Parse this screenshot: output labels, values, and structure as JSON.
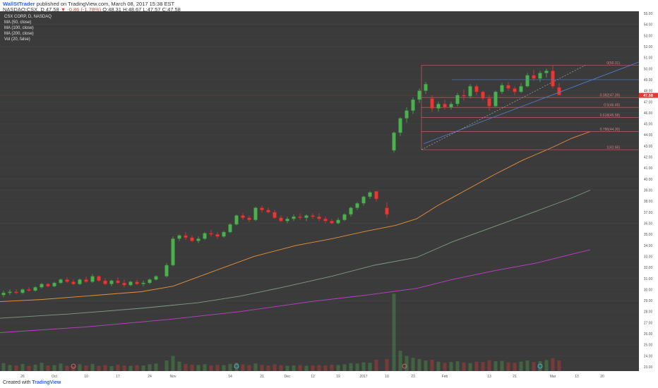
{
  "header": {
    "username": "WallStTrader",
    "published": "published on TradingView.com, March 08, 2017 15:38 EST",
    "ticker_line": "NASDAQ:CSX, D",
    "last": "47.58",
    "change": "▼ -0.86 (-1.78%)",
    "ohlc_o": "O:48.31",
    "ohlc_h": "H:48.67",
    "ohlc_l": "L:47.57",
    "ohlc_c": "C:47.58"
  },
  "legend": {
    "symbol": "CSX CORP, D, NASDAQ",
    "ma50": "MA (50, close)",
    "ma100": "MA (100, close)",
    "ma200": "MA (200, close)",
    "vol": "Vol (20, false)"
  },
  "footer": {
    "created_with": "Created with",
    "brand": "TradingView"
  },
  "colors": {
    "background": "#3b3b3b",
    "up": "#4caf50",
    "down": "#e53935",
    "ma50": "#e8923a",
    "ma100": "#7e9e80",
    "ma200": "#c040c8",
    "fib": "#c06060",
    "trendline": "#4f7fc8",
    "current_line": "#b03030"
  },
  "chart_data": {
    "type": "candlestick",
    "x_tick_labels": [
      "26",
      "Oct",
      "10",
      "17",
      "24",
      "Nov",
      "14",
      "21",
      "Dec",
      "12",
      "19",
      "2017",
      "10",
      "23",
      "Feb",
      "13",
      "21",
      "Mar",
      "13",
      "20"
    ],
    "y_axis": {
      "min": 23,
      "max": 55,
      "ticks": [
        23.0,
        24.0,
        25.0,
        26.0,
        27.0,
        28.0,
        29.0,
        30.0,
        31.0,
        32.0,
        33.0,
        34.0,
        35.0,
        36.0,
        37.0,
        38.0,
        39.0,
        40.0,
        41.0,
        42.0,
        43.0,
        44.0,
        45.0,
        46.0,
        47.0,
        48.0,
        49.0,
        50.0,
        51.0,
        52.0,
        53.0,
        54.0,
        55.0
      ],
      "tick_labels": [
        "23.00",
        "24.00",
        "25.00",
        "26.00",
        "27.00",
        "28.00",
        "29.00",
        "30.00",
        "31.00",
        "32.00",
        "33.00",
        "34.00",
        "35.00",
        "36.00",
        "37.00",
        "38.00",
        "39.00",
        "40.00",
        "41.00",
        "42.00",
        "43.00",
        "44.00",
        "45.00",
        "46.00",
        "47.00",
        "48.00",
        "49.00",
        "50.00",
        "51.00",
        "52.00",
        "53.00",
        "54.00",
        "55.00"
      ]
    },
    "current_price": 47.58,
    "current_price_label": "47.58",
    "fibonacci": [
      {
        "label": "0(50.31)",
        "value": 50.31
      },
      {
        "label": "0.382(47.39)",
        "value": 47.39
      },
      {
        "label": "0.5(46.49)",
        "value": 46.49
      },
      {
        "label": "0.618(45.58)",
        "value": 45.58
      },
      {
        "label": "0.786(44.30)",
        "value": 44.3
      },
      {
        "label": "1(42.66)",
        "value": 42.66
      }
    ],
    "candles": [
      [
        29.5,
        29.9,
        29.3,
        29.7
      ],
      [
        29.7,
        30.0,
        29.5,
        29.8
      ],
      [
        29.8,
        30.0,
        29.6,
        29.7
      ],
      [
        29.7,
        30.1,
        29.6,
        30.0
      ],
      [
        30.0,
        30.2,
        29.8,
        29.9
      ],
      [
        29.9,
        30.3,
        29.8,
        30.2
      ],
      [
        30.2,
        30.6,
        30.1,
        30.5
      ],
      [
        30.5,
        30.6,
        30.2,
        30.3
      ],
      [
        30.3,
        30.7,
        30.2,
        30.6
      ],
      [
        30.6,
        31.0,
        30.5,
        30.9
      ],
      [
        30.9,
        31.1,
        30.6,
        30.7
      ],
      [
        30.7,
        30.9,
        30.4,
        30.5
      ],
      [
        30.5,
        31.0,
        30.4,
        30.9
      ],
      [
        30.9,
        31.2,
        30.6,
        30.7
      ],
      [
        30.7,
        31.4,
        30.6,
        31.2
      ],
      [
        31.2,
        31.3,
        30.7,
        30.8
      ],
      [
        30.8,
        31.0,
        30.4,
        30.5
      ],
      [
        30.5,
        30.9,
        30.3,
        30.8
      ],
      [
        30.8,
        31.1,
        30.5,
        30.6
      ],
      [
        30.6,
        30.9,
        30.2,
        30.4
      ],
      [
        30.4,
        30.8,
        30.3,
        30.7
      ],
      [
        30.7,
        30.9,
        30.4,
        30.5
      ],
      [
        30.5,
        30.8,
        30.3,
        30.6
      ],
      [
        30.6,
        31.0,
        30.5,
        30.9
      ],
      [
        30.9,
        31.3,
        30.8,
        31.2
      ],
      [
        31.2,
        32.4,
        31.1,
        32.2
      ],
      [
        32.2,
        34.8,
        32.1,
        34.6
      ],
      [
        34.6,
        35.0,
        34.4,
        34.9
      ],
      [
        34.9,
        35.2,
        34.5,
        34.7
      ],
      [
        34.7,
        34.9,
        34.3,
        34.4
      ],
      [
        34.4,
        34.8,
        34.2,
        34.6
      ],
      [
        34.6,
        35.2,
        34.5,
        35.1
      ],
      [
        35.1,
        35.4,
        34.8,
        35.0
      ],
      [
        35.0,
        35.2,
        34.6,
        34.8
      ],
      [
        34.8,
        35.3,
        34.7,
        35.2
      ],
      [
        35.2,
        36.0,
        35.1,
        35.9
      ],
      [
        35.9,
        36.8,
        35.8,
        36.7
      ],
      [
        36.7,
        36.9,
        36.3,
        36.5
      ],
      [
        36.5,
        36.7,
        36.1,
        36.3
      ],
      [
        36.3,
        37.5,
        36.2,
        37.4
      ],
      [
        37.4,
        37.6,
        37.0,
        37.2
      ],
      [
        37.2,
        37.4,
        36.9,
        37.0
      ],
      [
        37.0,
        37.2,
        36.4,
        36.5
      ],
      [
        36.5,
        36.7,
        36.1,
        36.2
      ],
      [
        36.2,
        36.6,
        36.0,
        36.4
      ],
      [
        36.4,
        36.8,
        36.2,
        36.6
      ],
      [
        36.6,
        36.9,
        36.3,
        36.5
      ],
      [
        36.5,
        36.8,
        36.2,
        36.7
      ],
      [
        36.7,
        36.9,
        36.4,
        36.6
      ],
      [
        36.6,
        36.9,
        36.2,
        36.4
      ],
      [
        36.4,
        36.6,
        36.0,
        36.2
      ],
      [
        36.2,
        36.4,
        35.9,
        36.0
      ],
      [
        36.0,
        36.5,
        35.9,
        36.3
      ],
      [
        36.3,
        36.9,
        36.2,
        36.8
      ],
      [
        36.8,
        37.5,
        36.6,
        37.4
      ],
      [
        37.4,
        37.9,
        37.2,
        37.8
      ],
      [
        37.8,
        38.5,
        37.6,
        38.4
      ],
      [
        38.4,
        38.9,
        38.2,
        38.8
      ],
      [
        38.9,
        38.9,
        38.0,
        38.2
      ],
      [
        37.4,
        37.9,
        36.5,
        36.8
      ],
      [
        42.6,
        44.3,
        42.4,
        44.2
      ],
      [
        44.2,
        45.6,
        43.9,
        45.5
      ],
      [
        45.5,
        46.5,
        45.1,
        46.2
      ],
      [
        46.2,
        47.4,
        45.9,
        47.2
      ],
      [
        47.2,
        48.2,
        46.9,
        48.0
      ],
      [
        48.0,
        48.8,
        47.7,
        48.6
      ],
      [
        47.3,
        47.6,
        46.1,
        46.4
      ],
      [
        46.4,
        47.0,
        46.1,
        46.8
      ],
      [
        46.8,
        47.2,
        46.3,
        46.5
      ],
      [
        46.5,
        47.0,
        46.3,
        46.8
      ],
      [
        46.8,
        47.8,
        46.6,
        47.6
      ],
      [
        47.6,
        48.1,
        47.1,
        47.5
      ],
      [
        47.5,
        48.6,
        47.3,
        48.4
      ],
      [
        48.4,
        48.6,
        47.6,
        47.9
      ],
      [
        47.9,
        48.0,
        47.1,
        47.3
      ],
      [
        47.3,
        47.6,
        46.2,
        46.6
      ],
      [
        46.6,
        48.0,
        46.5,
        47.9
      ],
      [
        47.9,
        48.7,
        47.7,
        48.5
      ],
      [
        48.5,
        48.8,
        48.0,
        48.2
      ],
      [
        48.2,
        48.4,
        47.6,
        47.9
      ],
      [
        47.9,
        48.7,
        47.8,
        48.4
      ],
      [
        48.4,
        49.6,
        48.3,
        49.4
      ],
      [
        49.4,
        49.9,
        48.9,
        49.1
      ],
      [
        49.1,
        49.8,
        48.8,
        49.6
      ],
      [
        49.6,
        50.0,
        49.2,
        49.8
      ],
      [
        49.8,
        50.3,
        48.2,
        48.4
      ],
      [
        48.3,
        48.7,
        47.6,
        47.6
      ]
    ],
    "volume": [
      2.1,
      1.6,
      1.5,
      1.9,
      1.4,
      1.7,
      2.2,
      1.5,
      1.6,
      2.0,
      1.4,
      1.3,
      1.8,
      1.5,
      1.9,
      1.4,
      1.6,
      1.3,
      1.7,
      1.5,
      1.4,
      1.6,
      1.5,
      1.8,
      2.0,
      2.8,
      4.0,
      2.5,
      1.9,
      1.7,
      1.6,
      1.8,
      1.5,
      1.7,
      1.6,
      1.9,
      2.2,
      1.8,
      1.6,
      2.0,
      1.7,
      1.5,
      1.8,
      1.6,
      1.4,
      1.5,
      1.6,
      1.4,
      1.5,
      1.6,
      1.5,
      1.7,
      1.6,
      1.8,
      2.1,
      2.0,
      2.3,
      2.2,
      3.0,
      3.2,
      20.5,
      5.4,
      4.0,
      3.5,
      3.2,
      2.8,
      3.0,
      2.5,
      2.2,
      2.4,
      2.6,
      2.3,
      2.1,
      2.5,
      2.4,
      2.9,
      2.6,
      2.7,
      2.3,
      2.2,
      2.5,
      2.8,
      2.4,
      2.6,
      2.9,
      3.4,
      2.8
    ]
  }
}
